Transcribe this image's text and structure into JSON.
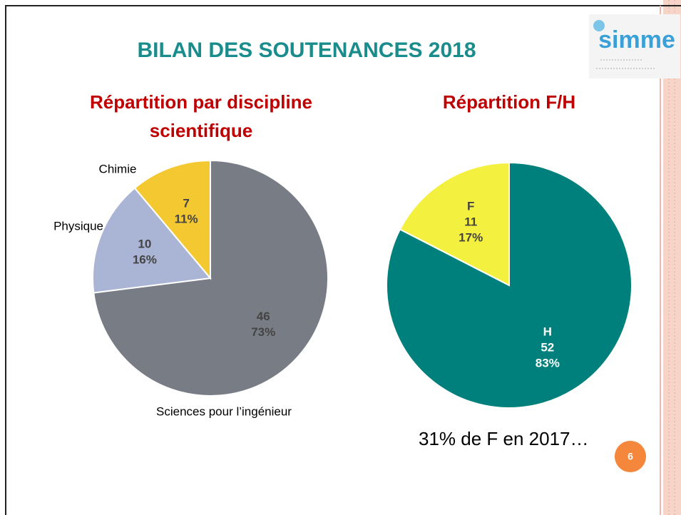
{
  "slide": {
    "title": "BILAN DES SOUTENANCES 2018",
    "logo": "simme",
    "note": "31% de F en 2017…",
    "page": "6"
  },
  "chart_data": [
    {
      "type": "pie",
      "title": "Répartition par discipline scientifique",
      "labels": "outside",
      "categories": [
        "Sciences pour l’ingénieur",
        "Physique",
        "Chimie"
      ],
      "values": [
        46,
        10,
        7
      ],
      "percent_labels": [
        "73%",
        "16%",
        "11%"
      ],
      "colors": [
        "#787c84",
        "#aab4d4",
        "#f4c830"
      ]
    },
    {
      "type": "pie",
      "title": "Répartition F/H",
      "labels": "inside",
      "categories": [
        "H",
        "F"
      ],
      "values": [
        52,
        11
      ],
      "percent_labels": [
        "83%",
        "17%"
      ],
      "colors": [
        "#00807c",
        "#f4f040"
      ]
    }
  ]
}
